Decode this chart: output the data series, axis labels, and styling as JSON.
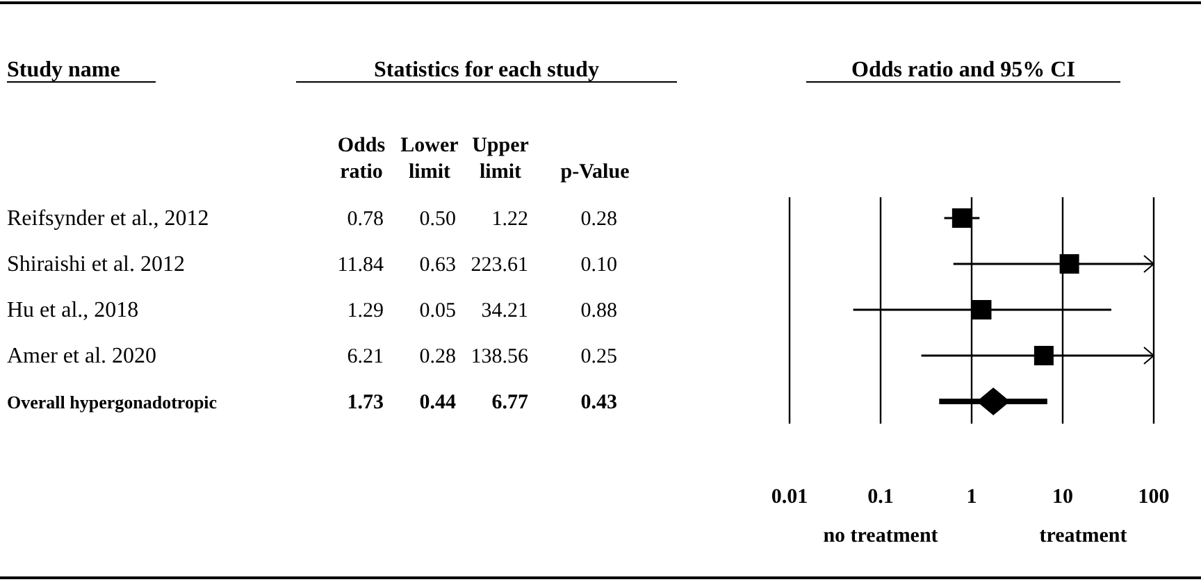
{
  "chart_data": [
    {
      "type": "other",
      "title": "Statistics for each study",
      "ylabel": "Study name",
      "categories": [
        "Odds ratio",
        "Lower limit",
        "Upper limit",
        "p-Value"
      ],
      "y_categories": [
        "Reifsynder et al., 2012",
        "Shiraishi et al. 2012",
        "Hu et al., 2018",
        "Amer et al. 2020",
        "Overall hypergonadotropic"
      ],
      "cell_labels": [
        [
          "0.78",
          "0.50",
          "1.22",
          "0.28"
        ],
        [
          "11.84",
          "0.63",
          "223.61",
          "0.10"
        ],
        [
          "1.29",
          "0.05",
          "34.21",
          "0.88"
        ],
        [
          "6.21",
          "0.28",
          "138.56",
          "0.25"
        ],
        [
          "1.73",
          "0.44",
          "6.77",
          "0.43"
        ]
      ]
    },
    {
      "type": "scatter",
      "orientation": "horizontal",
      "title": "Odds ratio and 95% CI",
      "categories": [
        null,
        null,
        null,
        null,
        null
      ],
      "log": "x",
      "xlim": [
        0.01,
        100
      ],
      "xticks": [
        0.01,
        0.1,
        1,
        10,
        100
      ],
      "grid": "x",
      "series": [
        {
          "color": "#000000",
          "marker": "square",
          "values": [
            0.78,
            11.84,
            1.29,
            6.21,
            null
          ],
          "errors": [
            [
              0.5,
              1.22
            ],
            [
              0.63,
              100
            ],
            [
              0.05,
              34.21
            ],
            [
              0.28,
              100
            ],
            null
          ]
        },
        {
          "color": "#000000",
          "marker": "diamond",
          "values": [
            null,
            null,
            null,
            null,
            1.73
          ],
          "errors": [
            null,
            null,
            null,
            null,
            [
              0.44,
              6.77
            ]
          ]
        }
      ],
      "annotations": [
        "no treatment",
        "treatment"
      ]
    }
  ]
}
